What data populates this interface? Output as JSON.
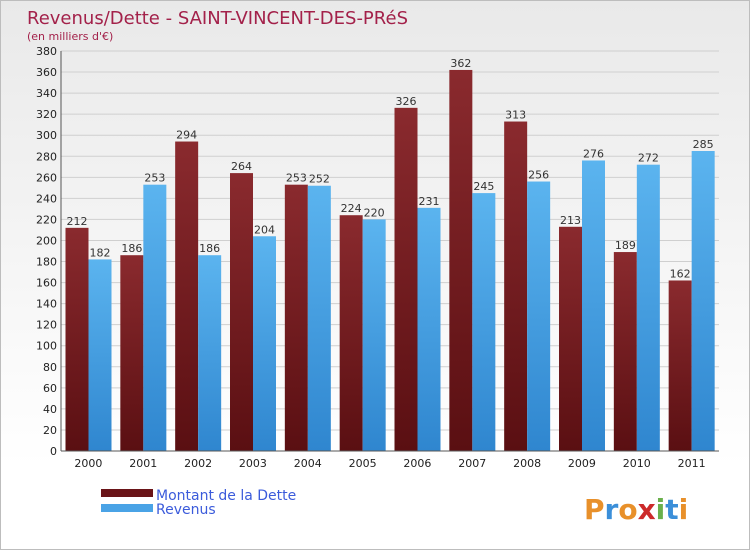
{
  "chart_data": {
    "type": "bar",
    "title": "Revenus/Dette - SAINT-VINCENT-DES-PRéS",
    "subtitle": "(en milliers d'€)",
    "categories": [
      "2000",
      "2001",
      "2002",
      "2003",
      "2004",
      "2005",
      "2006",
      "2007",
      "2008",
      "2009",
      "2010",
      "2011"
    ],
    "series": [
      {
        "name": "Montant de la Dette",
        "color": "#7a1e22",
        "values": [
          212,
          186,
          294,
          264,
          253,
          224,
          326,
          362,
          313,
          213,
          189,
          162
        ]
      },
      {
        "name": "Revenus",
        "color": "#4aa3e6",
        "values": [
          182,
          253,
          186,
          204,
          252,
          220,
          231,
          245,
          256,
          276,
          272,
          285
        ]
      }
    ],
    "ylim": [
      0,
      380
    ],
    "ytick_step": 20,
    "grid": true,
    "legend_position": "bottom-left",
    "logo": "Proxiti"
  }
}
